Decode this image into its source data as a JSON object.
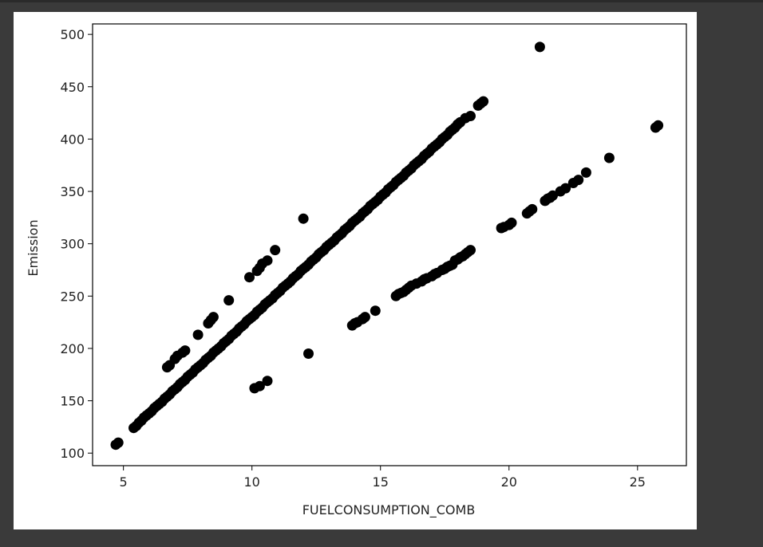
{
  "chart_data": {
    "type": "scatter",
    "title": "",
    "xlabel": "FUELCONSUMPTION_COMB",
    "ylabel": "Emission",
    "xlim": [
      3.8,
      26.9
    ],
    "ylim": [
      88,
      510
    ],
    "xticks": [
      5,
      10,
      15,
      20,
      25
    ],
    "yticks": [
      100,
      150,
      200,
      250,
      300,
      350,
      400,
      450,
      500
    ],
    "grid": false,
    "marker_color": "#000000",
    "series": [
      {
        "x": [
          4.7,
          4.8,
          5.4,
          5.5,
          5.6,
          5.7,
          5.8,
          5.9,
          6.0,
          6.1,
          6.2,
          6.3,
          6.4,
          6.5,
          6.6,
          6.7,
          6.8,
          6.9,
          7.0,
          7.1,
          7.2,
          7.3,
          7.4,
          7.5,
          7.6,
          7.7,
          7.8,
          7.9,
          8.0,
          8.1,
          8.2,
          8.3,
          8.4,
          8.5,
          8.6,
          8.7,
          8.8,
          8.9,
          9.0,
          9.1,
          9.2,
          9.3,
          9.4,
          9.5,
          9.6,
          9.7,
          9.8,
          9.9,
          10.0,
          10.1,
          10.2,
          10.3,
          10.4,
          10.5,
          10.6,
          10.7,
          10.8,
          10.9,
          11.0,
          11.1,
          11.2,
          11.3,
          11.4,
          11.5,
          11.6,
          11.7,
          11.8,
          11.9,
          12.0,
          12.1,
          12.2,
          12.3,
          12.4,
          12.5,
          12.6,
          12.7,
          12.8,
          12.9,
          13.0,
          13.1,
          13.2,
          13.3,
          13.4,
          13.5,
          13.6,
          13.7,
          13.8,
          13.9,
          14.0,
          14.1,
          14.2,
          14.3,
          14.4,
          14.5,
          14.6,
          14.7,
          14.8,
          14.9,
          15.0,
          15.1,
          15.2,
          15.3,
          15.4,
          15.5,
          15.6,
          15.7,
          15.8,
          15.9,
          16.0,
          16.1,
          16.2,
          16.3,
          16.4,
          16.5,
          16.6,
          16.7,
          16.8,
          16.9,
          17.0,
          17.1,
          17.2,
          17.3,
          17.4,
          17.5,
          17.6,
          17.7,
          17.8,
          17.9,
          18.0,
          18.1,
          18.3,
          18.5,
          18.8,
          18.9,
          19.0
        ],
        "y": [
          108,
          110,
          124,
          126,
          129,
          131,
          134,
          136,
          138,
          140,
          143,
          145,
          147,
          149,
          152,
          154,
          156,
          159,
          161,
          163,
          166,
          168,
          170,
          173,
          175,
          177,
          180,
          182,
          184,
          186,
          189,
          191,
          193,
          196,
          198,
          200,
          202,
          205,
          207,
          209,
          212,
          214,
          216,
          219,
          221,
          223,
          226,
          228,
          230,
          232,
          235,
          237,
          239,
          242,
          244,
          246,
          248,
          251,
          253,
          255,
          258,
          260,
          262,
          264,
          267,
          269,
          271,
          274,
          276,
          278,
          280,
          283,
          285,
          287,
          290,
          292,
          294,
          297,
          299,
          301,
          303,
          306,
          308,
          310,
          313,
          315,
          317,
          320,
          322,
          324,
          326,
          329,
          331,
          333,
          336,
          338,
          340,
          342,
          345,
          347,
          349,
          352,
          354,
          356,
          359,
          361,
          363,
          365,
          368,
          370,
          372,
          375,
          377,
          379,
          381,
          384,
          386,
          388,
          391,
          393,
          395,
          397,
          400,
          402,
          404,
          407,
          409,
          411,
          414,
          416,
          420,
          422,
          432,
          434,
          436
        ]
      },
      {
        "x": [
          6.7,
          6.8,
          7.0,
          7.1,
          7.3,
          7.4,
          7.9,
          8.3,
          8.4,
          8.5,
          9.1,
          9.9,
          10.2,
          10.3,
          10.4,
          10.6,
          10.9,
          12.0
        ],
        "y": [
          182,
          184,
          190,
          193,
          196,
          198,
          213,
          224,
          227,
          230,
          246,
          268,
          274,
          277,
          281,
          284,
          294,
          324
        ]
      },
      {
        "x": [
          10.1,
          10.3,
          10.6,
          12.2,
          13.9,
          14.0,
          14.1,
          14.3,
          14.4,
          14.8,
          15.6,
          15.7,
          15.8,
          15.9,
          16.0,
          16.1,
          16.2,
          16.4,
          16.6,
          16.7,
          16.8,
          17.0,
          17.1,
          17.2,
          17.4,
          17.5,
          17.6,
          17.7,
          17.8,
          17.9,
          18.0,
          18.1,
          18.2,
          18.3,
          18.4,
          18.5,
          19.7,
          19.8,
          20.0,
          20.1,
          20.7,
          20.8,
          20.9,
          21.4,
          21.5,
          21.6,
          21.7,
          22.0,
          22.2,
          22.5,
          22.7,
          23.0,
          23.9,
          25.7,
          25.8,
          21.2
        ],
        "y": [
          162,
          164,
          169,
          195,
          222,
          224,
          225,
          228,
          230,
          236,
          250,
          252,
          253,
          254,
          256,
          258,
          260,
          262,
          264,
          266,
          267,
          269,
          271,
          272,
          275,
          276,
          278,
          279,
          280,
          284,
          285,
          287,
          288,
          290,
          292,
          294,
          315,
          316,
          318,
          320,
          329,
          331,
          333,
          341,
          343,
          344,
          346,
          350,
          353,
          358,
          361,
          368,
          382,
          411,
          413,
          488
        ]
      }
    ]
  }
}
